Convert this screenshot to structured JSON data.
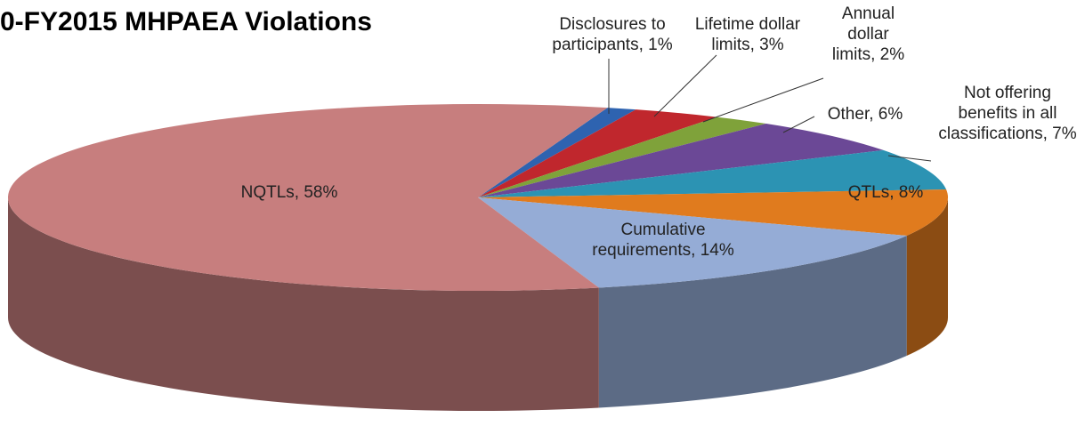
{
  "chart_data": {
    "type": "pie",
    "title": "0-FY2015 MHPAEA Violations",
    "values": [
      1,
      3,
      2,
      6,
      7,
      8,
      14,
      58
    ],
    "value_labels": [
      "Disclosures to participants, 1%",
      "Lifetime dollar limits, 3%",
      "Annual dollar limits, 2%",
      "Other, 6%",
      "Not offering benefits in all classifications, 7%",
      "QTLs, 8%",
      "Cumulative requirements, 14%",
      "NQTLs, 58%"
    ],
    "colors": [
      "#2e63b0",
      "#c0272d",
      "#7fa23a",
      "#6b4896",
      "#2c93b3",
      "#e07b1e",
      "#95acd6",
      "#c77e7e"
    ]
  }
}
